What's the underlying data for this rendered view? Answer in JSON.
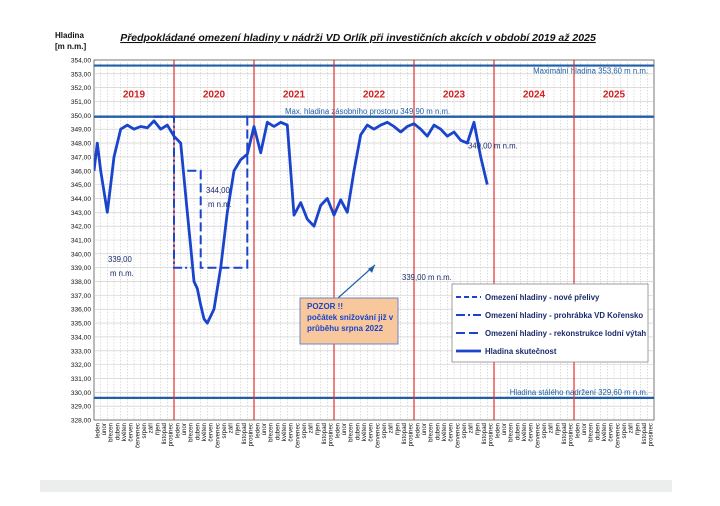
{
  "chart_data": {
    "type": "line",
    "title": "Předpokládané omezení hladiny v nádrži VD Orlík při investičních akcích v období 2019 až 2025",
    "ylabel": "Hladina",
    "yunit": "[m n.m.]",
    "ylim": [
      328,
      354
    ],
    "y_ticks": [
      "328,00",
      "329,00",
      "330,00",
      "331,00",
      "332,00",
      "333,00",
      "334,00",
      "335,00",
      "336,00",
      "337,00",
      "338,00",
      "339,00",
      "340,00",
      "341,00",
      "342,00",
      "343,00",
      "344,00",
      "345,00",
      "346,00",
      "347,00",
      "348,00",
      "349,00",
      "350,00",
      "351,00",
      "352,00",
      "353,00",
      "354,00"
    ],
    "years": [
      "2019",
      "2020",
      "2021",
      "2022",
      "2023",
      "2024",
      "2025"
    ],
    "months": [
      "leden",
      "únor",
      "březen",
      "duben",
      "květen",
      "červen",
      "červenec",
      "srpen",
      "září",
      "říjen",
      "listopad",
      "prosinec"
    ],
    "reference_lines": [
      {
        "label": "Maximální hladina 353,60 m n.m.",
        "value": 353.6
      },
      {
        "label": "Max. hladina zásobního prostoru  349,90 m n.m.",
        "value": 349.9
      },
      {
        "label": "Hladina stálého  nadržení 329,60 m n.m.",
        "value": 329.6
      }
    ],
    "annotations": [
      "339,00 m n.m.",
      "344,00 m n.m.",
      "339,00 m n.m.",
      "349,00 m n.m."
    ],
    "callout": [
      "POZOR !!",
      "počátek snižování již v",
      "průběhu srpna 2022"
    ],
    "legend": {
      "position": "right",
      "items": [
        "Omezení hladiny - nové přelivy",
        "Omezení hladiny - prohrábka VD Kořensko",
        "Omezení hladiny - rekonstrukce lodní výtah",
        "Hladina skutečnost"
      ]
    },
    "series": [
      {
        "name": "Hladina skutečnost",
        "x": [
          0,
          0.5,
          1,
          1.5,
          2,
          2.5,
          3,
          4,
          5,
          6,
          7,
          8,
          9,
          10,
          11,
          12,
          13,
          14,
          14.5,
          15,
          15.5,
          16,
          16.5,
          17,
          18,
          19,
          20,
          21,
          22,
          23,
          24,
          25,
          26,
          27,
          28,
          29,
          30,
          31,
          32,
          33,
          34,
          35,
          36,
          37,
          38,
          39,
          40,
          41,
          42,
          43,
          44,
          45,
          46,
          47,
          48,
          49,
          50,
          51,
          52,
          53,
          54,
          55,
          56,
          57,
          58,
          59
        ],
        "values": [
          346,
          348,
          346,
          344.5,
          343,
          345,
          347,
          349,
          349.3,
          349,
          349.2,
          349.1,
          349.6,
          349,
          349.3,
          348.5,
          348,
          343,
          340.5,
          338,
          337.5,
          336.3,
          335.3,
          335,
          336,
          339,
          343,
          346,
          346.8,
          347.2,
          349.2,
          347.3,
          349.5,
          349.2,
          349.5,
          349.3,
          342.8,
          343.7,
          342.5,
          342,
          343.5,
          344,
          342.8,
          343.9,
          343,
          346,
          348.6,
          349.3,
          349,
          349.3,
          349.5,
          349.2,
          348.8,
          349.2,
          349.4,
          349,
          348.5,
          349.3,
          349,
          348.5,
          348.8,
          348.2,
          348,
          349.5,
          347,
          345
        ]
      },
      {
        "name": "Omezení hladiny - nové přelivy",
        "x": [
          93,
          96,
          96,
          108,
          108,
          116,
          116,
          129
        ],
        "values": [
          339,
          339,
          339,
          339,
          349,
          349,
          349,
          349.9
        ]
      },
      {
        "name": "Omezení hladiny - prohrábka VD Kořensko",
        "x": [
          9,
          12,
          12,
          14.5
        ],
        "values": [
          349.9,
          349.9,
          339,
          339
        ]
      },
      {
        "name": "Omezení hladiny - rekonstrukce lodní výtah",
        "x": [
          14,
          16,
          16,
          23,
          23,
          25
        ],
        "values": [
          346,
          346,
          339,
          339,
          349.9,
          349.9
        ]
      }
    ]
  }
}
